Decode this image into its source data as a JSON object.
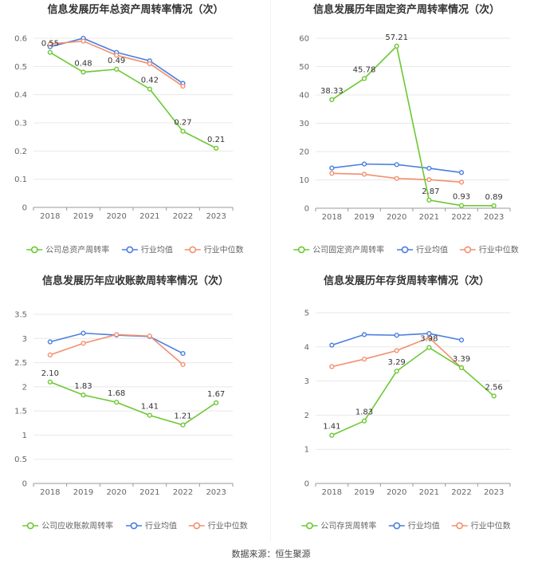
{
  "source_label": "数据来源：恒生聚源",
  "colors": {
    "company": "#6cc833",
    "industry_avg": "#4a7ee0",
    "industry_median": "#f2906f",
    "grid": "#e8e8e8",
    "axis": "#999999",
    "text": "#666666"
  },
  "chart_data": [
    {
      "type": "line",
      "title": "信息发展历年总资产周转率情况（次）",
      "categories": [
        "2018",
        "2019",
        "2020",
        "2021",
        "2022",
        "2023"
      ],
      "ylim": [
        0,
        0.6
      ],
      "yticks": [
        0,
        0.1,
        0.2,
        0.3,
        0.4,
        0.5,
        0.6
      ],
      "ytick_labels": [
        "0",
        "0.1",
        "0.2",
        "0.3",
        "0.4",
        "0.5",
        "0.6"
      ],
      "legend_position": "bottom",
      "series": [
        {
          "name": "公司总资产周转率",
          "color": "#6cc833",
          "values": [
            0.55,
            0.48,
            0.49,
            0.42,
            0.27,
            0.21
          ],
          "labels": [
            "0.55",
            "0.48",
            "0.49",
            "0.42",
            "0.27",
            "0.21"
          ]
        },
        {
          "name": "行业均值",
          "color": "#4a7ee0",
          "values": [
            0.57,
            0.6,
            0.55,
            0.52,
            0.44,
            null
          ]
        },
        {
          "name": "行业中位数",
          "color": "#f2906f",
          "values": [
            0.58,
            0.59,
            0.54,
            0.51,
            0.43,
            null
          ]
        }
      ]
    },
    {
      "type": "line",
      "title": "信息发展历年固定资产周转率情况（次）",
      "categories": [
        "2018",
        "2019",
        "2020",
        "2021",
        "2022",
        "2023"
      ],
      "ylim": [
        0,
        60
      ],
      "yticks": [
        0,
        10,
        20,
        30,
        40,
        50,
        60
      ],
      "ytick_labels": [
        "0",
        "10",
        "20",
        "30",
        "40",
        "50",
        "60"
      ],
      "legend_position": "bottom",
      "series": [
        {
          "name": "公司固定资产周转率",
          "color": "#6cc833",
          "values": [
            38.33,
            45.78,
            57.21,
            2.87,
            0.93,
            0.89
          ],
          "labels": [
            "38.33",
            "45.78",
            "57.21",
            "2.87",
            "0.93",
            "0.89"
          ]
        },
        {
          "name": "行业均值",
          "color": "#4a7ee0",
          "values": [
            14.2,
            15.6,
            15.4,
            14.1,
            12.6,
            null
          ]
        },
        {
          "name": "行业中位数",
          "color": "#f2906f",
          "values": [
            12.3,
            12.0,
            10.5,
            10.1,
            9.2,
            null
          ]
        }
      ]
    },
    {
      "type": "line",
      "title": "信息发展历年应收账款周转率情况（次）",
      "categories": [
        "2018",
        "2019",
        "2020",
        "2021",
        "2022",
        "2023"
      ],
      "ylim": [
        0,
        3.5
      ],
      "yticks": [
        0,
        0.5,
        1,
        1.5,
        2,
        2.5,
        3,
        3.5
      ],
      "ytick_labels": [
        "0",
        "0.5",
        "1",
        "1.5",
        "2",
        "2.5",
        "3",
        "3.5"
      ],
      "legend_position": "bottom",
      "series": [
        {
          "name": "公司应收账款周转率",
          "color": "#6cc833",
          "values": [
            2.1,
            1.83,
            1.68,
            1.41,
            1.21,
            1.67
          ],
          "labels": [
            "2.10",
            "1.83",
            "1.68",
            "1.41",
            "1.21",
            "1.67"
          ]
        },
        {
          "name": "行业均值",
          "color": "#4a7ee0",
          "values": [
            2.93,
            3.11,
            3.07,
            3.04,
            2.69,
            null
          ]
        },
        {
          "name": "行业中位数",
          "color": "#f2906f",
          "values": [
            2.66,
            2.9,
            3.08,
            3.05,
            2.46,
            null
          ]
        }
      ]
    },
    {
      "type": "line",
      "title": "信息发展历年存货周转率情况（次）",
      "categories": [
        "2018",
        "2019",
        "2020",
        "2021",
        "2022",
        "2023"
      ],
      "ylim": [
        0,
        5
      ],
      "yticks": [
        0,
        1,
        2,
        3,
        4,
        5
      ],
      "ytick_labels": [
        "0",
        "1",
        "2",
        "3",
        "4",
        "5"
      ],
      "legend_position": "bottom",
      "series": [
        {
          "name": "公司存货周转率",
          "color": "#6cc833",
          "values": [
            1.41,
            1.83,
            3.29,
            3.98,
            3.39,
            2.56
          ],
          "labels": [
            "1.41",
            "1.83",
            "3.29",
            "3.98",
            "3.39",
            "2.56"
          ]
        },
        {
          "name": "行业均值",
          "color": "#4a7ee0",
          "values": [
            4.05,
            4.36,
            4.34,
            4.39,
            4.2,
            null
          ]
        },
        {
          "name": "行业中位数",
          "color": "#f2906f",
          "values": [
            3.42,
            3.64,
            3.89,
            4.27,
            3.39,
            null
          ]
        }
      ]
    }
  ]
}
